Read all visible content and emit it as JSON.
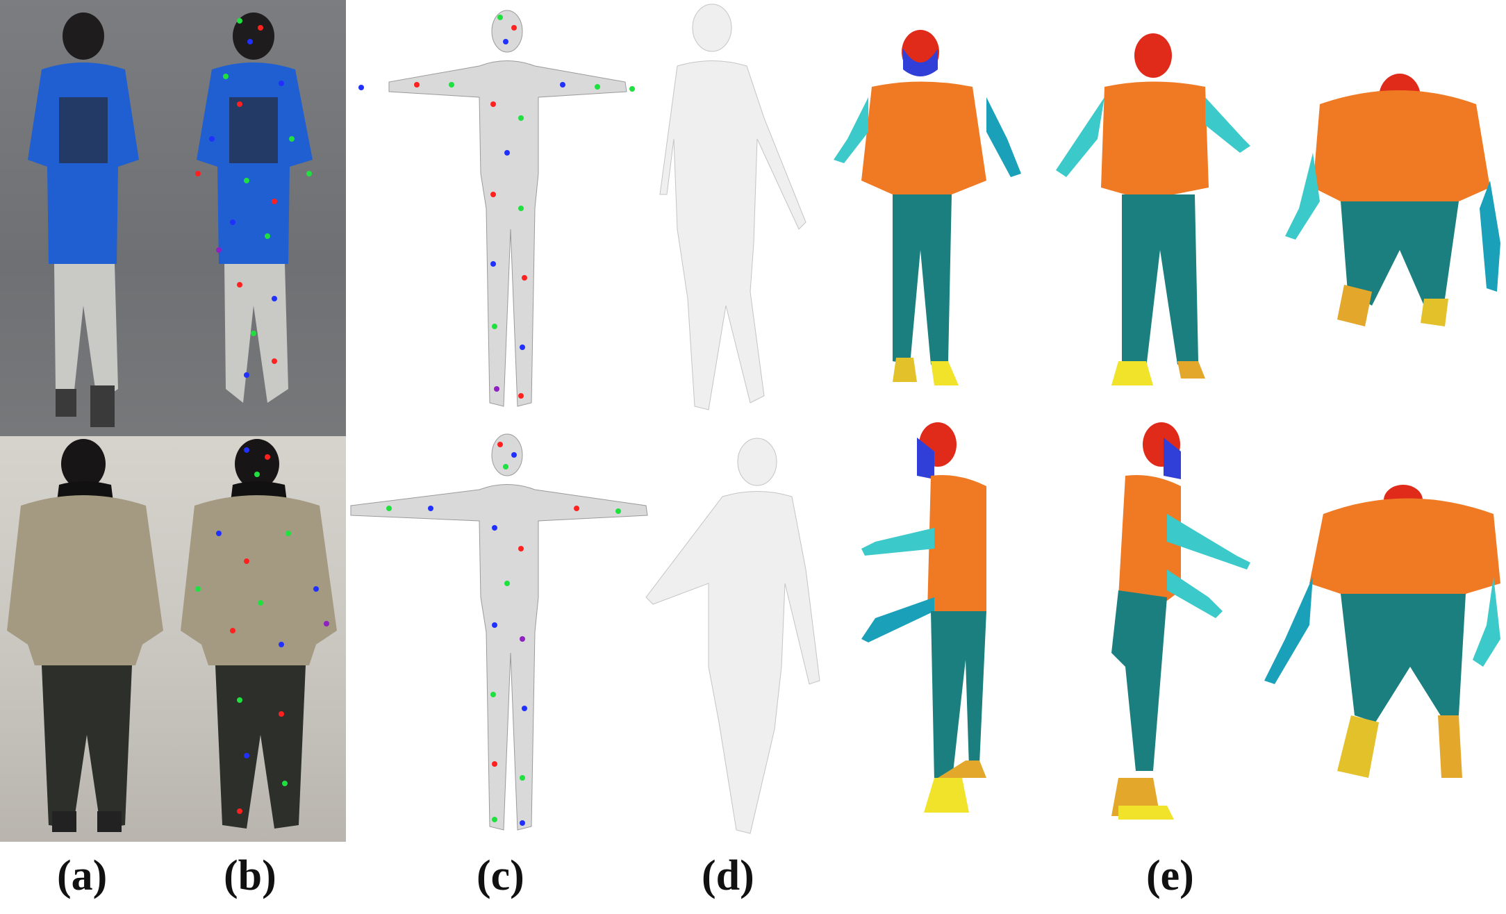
{
  "labels": {
    "a": "(a)",
    "b": "(b)",
    "c": "(c)",
    "d": "(d)",
    "e": "(e)"
  },
  "colors": {
    "shirt_blue": "#1f5fd1",
    "jacket_khaki": "#a49a82",
    "mesh_gray": "#d9d9d9",
    "smooth_white": "#efefef",
    "head_red": "#e02a1a",
    "face_blue": "#2f3fd8",
    "torso_orange": "#f07a24",
    "legs_teal": "#1a7f7e",
    "hands_cyan": "#3cc9c9",
    "feet_yellow": "#e3c12b",
    "dot_red": "#ff2020",
    "dot_green": "#20e040",
    "dot_blue": "#2030ff",
    "dot_purple": "#9020c0"
  }
}
